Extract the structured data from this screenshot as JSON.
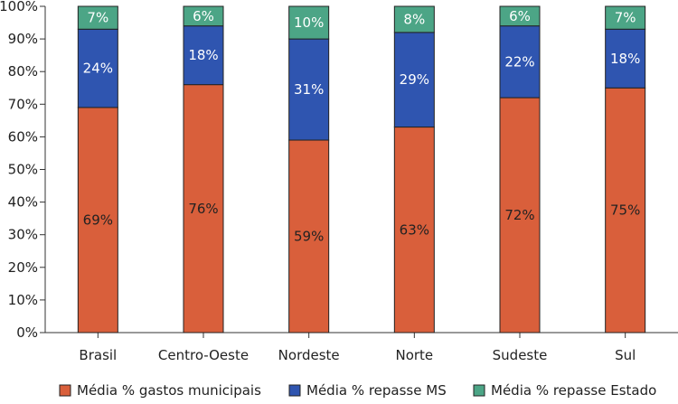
{
  "chart_data": {
    "type": "bar",
    "stacked": true,
    "title": "",
    "xlabel": "",
    "ylabel": "",
    "ylim": [
      0,
      100
    ],
    "y_ticks": [
      "0%",
      "10%",
      "20%",
      "30%",
      "40%",
      "50%",
      "60%",
      "70%",
      "80%",
      "90%",
      "100%"
    ],
    "grid": false,
    "legend_position": "bottom",
    "categories": [
      "Brasil",
      "Centro-Oeste",
      "Nordeste",
      "Norte",
      "Sudeste",
      "Sul"
    ],
    "series": [
      {
        "name": "Média % gastos municipais",
        "color": "#d95f3b",
        "values": [
          69,
          76,
          59,
          63,
          72,
          75
        ],
        "labels": [
          "69%",
          "76%",
          "59%",
          "63%",
          "72%",
          "75%"
        ],
        "label_color": "#222222"
      },
      {
        "name": "Média % repasse MS",
        "color": "#2f55b0",
        "values": [
          24,
          18,
          31,
          29,
          22,
          18
        ],
        "labels": [
          "24%",
          "18%",
          "31%",
          "29%",
          "22%",
          "18%"
        ],
        "label_color": "#ffffff"
      },
      {
        "name": "Média % repasse Estado",
        "color": "#4ca586",
        "values": [
          7,
          6,
          10,
          8,
          6,
          7
        ],
        "labels": [
          "7%",
          "6%",
          "10%",
          "8%",
          "6%",
          "7%"
        ],
        "label_color": "#ffffff"
      }
    ]
  }
}
